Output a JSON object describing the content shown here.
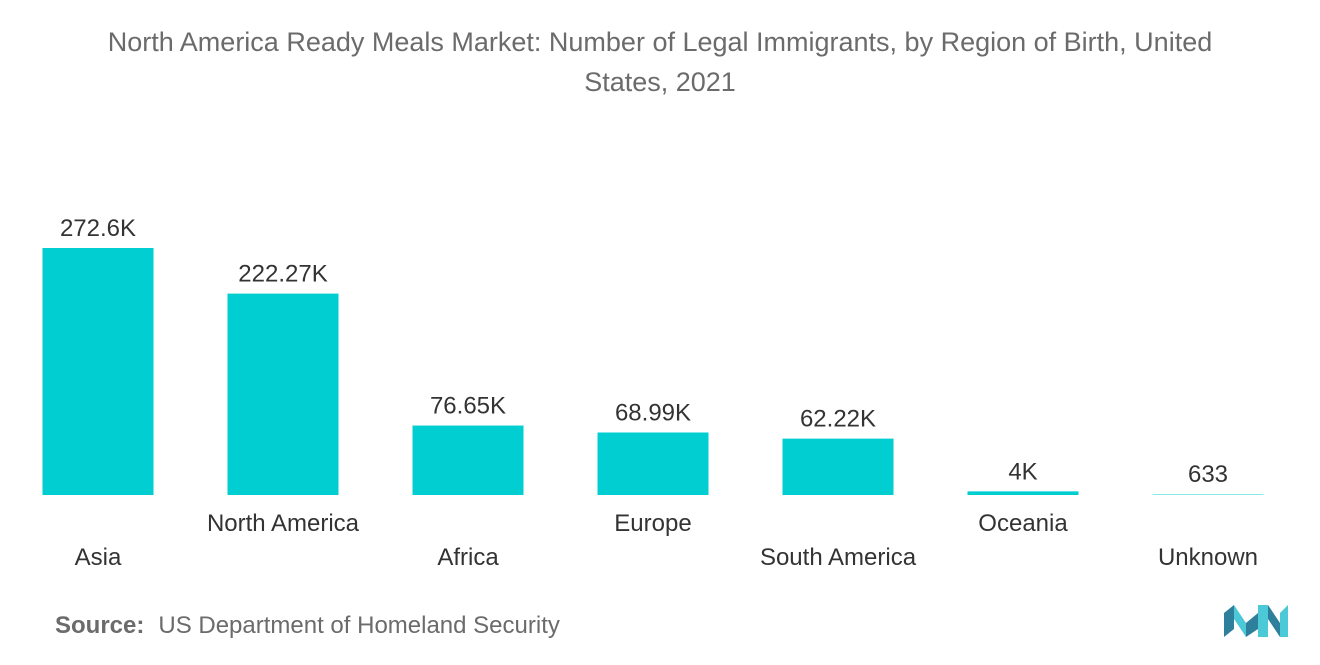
{
  "title": {
    "line1": "North America Ready Meals Market: Number of Legal Immigrants, by Region of Birth, United",
    "line2": "States, 2021"
  },
  "source": {
    "label": "Source:",
    "text": "US Department of Homeland Security"
  },
  "colors": {
    "bar": "#00CED1",
    "text": "#333333",
    "muted": "#6b6b6b",
    "logo_dark": "#2d7f9b",
    "logo_light": "#4cc9d6"
  },
  "logo": {
    "icon": "mordor-logo-icon"
  },
  "chart_data": {
    "type": "bar",
    "categories": [
      "Asia",
      "North America",
      "Africa",
      "Europe",
      "South America",
      "Oceania",
      "Unknown"
    ],
    "values": [
      272600,
      222270,
      76650,
      68990,
      62220,
      4000,
      633
    ],
    "data_labels": [
      "272.6K",
      "222.27K",
      "76.65K",
      "68.99K",
      "62.22K",
      "4K",
      "633"
    ],
    "xlabel": "",
    "ylabel": "",
    "ylim": [
      0,
      272600
    ],
    "grid": false,
    "legend": "none"
  }
}
